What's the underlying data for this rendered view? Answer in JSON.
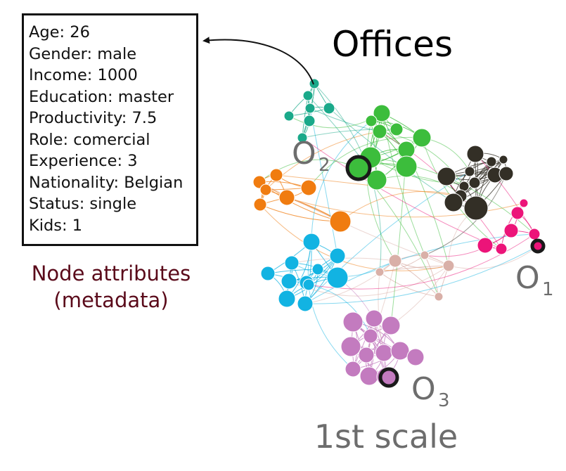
{
  "title": "Offices",
  "scale_label": "1st scale",
  "attributes_caption": [
    "Node attributes",
    "(metadata)"
  ],
  "attributes": [
    "Age: 26",
    "Gender: male",
    "Income: 1000",
    "Education: master",
    "Productivity: 7.5",
    "Role: comercial",
    "Experience: 3",
    "Nationality: Belgian",
    "Status: single",
    "Kids: 1"
  ],
  "office_labels": [
    {
      "base": "O",
      "sub": "2"
    },
    {
      "base": "O",
      "sub": "1"
    },
    {
      "base": "O",
      "sub": "3"
    }
  ],
  "colors": {
    "teal": "#1aa98a",
    "green": "#3cbd3c",
    "dark": "#332f26",
    "orange": "#f07c10",
    "pink": "#ec1479",
    "blue": "#12b3e2",
    "tan": "#d9b0a8",
    "purple": "#c37bbf",
    "label_gray": "#6d6d6d",
    "caption": "#5a0a1a"
  }
}
